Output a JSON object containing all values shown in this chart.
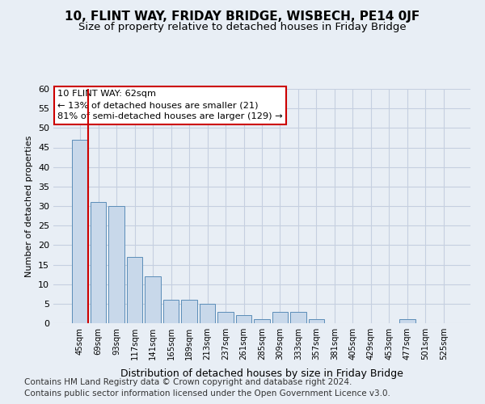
{
  "title": "10, FLINT WAY, FRIDAY BRIDGE, WISBECH, PE14 0JF",
  "subtitle": "Size of property relative to detached houses in Friday Bridge",
  "xlabel": "Distribution of detached houses by size in Friday Bridge",
  "ylabel": "Number of detached properties",
  "footnote1": "Contains HM Land Registry data © Crown copyright and database right 2024.",
  "footnote2": "Contains public sector information licensed under the Open Government Licence v3.0.",
  "categories": [
    "45sqm",
    "69sqm",
    "93sqm",
    "117sqm",
    "141sqm",
    "165sqm",
    "189sqm",
    "213sqm",
    "237sqm",
    "261sqm",
    "285sqm",
    "309sqm",
    "333sqm",
    "357sqm",
    "381sqm",
    "405sqm",
    "429sqm",
    "453sqm",
    "477sqm",
    "501sqm",
    "525sqm"
  ],
  "values": [
    47,
    31,
    30,
    17,
    12,
    6,
    6,
    5,
    3,
    2,
    1,
    3,
    3,
    1,
    0,
    0,
    0,
    0,
    1,
    0,
    0
  ],
  "bar_color": "#c8d8ea",
  "bar_edge_color": "#5b8db8",
  "annotation_text_line1": "10 FLINT WAY: 62sqm",
  "annotation_text_line2": "← 13% of detached houses are smaller (21)",
  "annotation_text_line3": "81% of semi-detached houses are larger (129) →",
  "red_line_color": "#cc0000",
  "annotation_box_facecolor": "#ffffff",
  "annotation_box_edgecolor": "#cc0000",
  "ylim": [
    0,
    60
  ],
  "yticks": [
    0,
    5,
    10,
    15,
    20,
    25,
    30,
    35,
    40,
    45,
    50,
    55,
    60
  ],
  "grid_color": "#c5cfe0",
  "bg_color": "#e8eef5",
  "title_fontsize": 11,
  "subtitle_fontsize": 9.5,
  "footnote_fontsize": 7.5
}
